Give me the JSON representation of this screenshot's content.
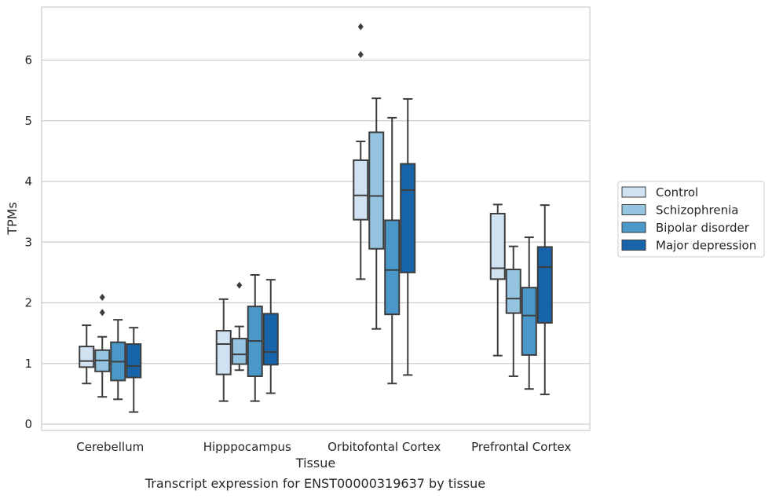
{
  "caption": "Transcript expression for ENST00000319637 by tissue",
  "chart_data": {
    "type": "box",
    "xlabel": "Tissue",
    "ylabel": "TPMs",
    "ylim": [
      -0.1,
      6.85
    ],
    "yticks": [
      0,
      1,
      2,
      3,
      4,
      5,
      6
    ],
    "grid": "horizontal",
    "legend_position": "right",
    "categories": [
      "Cerebellum",
      "Hipppocampus",
      "Orbitofontal Cortex",
      "Prefrontal Cortex"
    ],
    "series": [
      {
        "name": "Control",
        "color": "#d0e1f2",
        "boxes": [
          {
            "whisker_low": 0.67,
            "q1": 0.94,
            "median": 1.04,
            "q3": 1.28,
            "whisker_high": 1.63,
            "outliers": []
          },
          {
            "whisker_low": 0.38,
            "q1": 0.82,
            "median": 1.32,
            "q3": 1.54,
            "whisker_high": 2.06,
            "outliers": []
          },
          {
            "whisker_low": 2.39,
            "q1": 3.37,
            "median": 3.77,
            "q3": 4.35,
            "whisker_high": 4.66,
            "outliers": [
              6.09,
              6.55
            ]
          },
          {
            "whisker_low": 1.13,
            "q1": 2.39,
            "median": 2.57,
            "q3": 3.47,
            "whisker_high": 3.62,
            "outliers": []
          }
        ]
      },
      {
        "name": "Schizophrenia",
        "color": "#94c4df",
        "boxes": [
          {
            "whisker_low": 0.45,
            "q1": 0.87,
            "median": 1.05,
            "q3": 1.22,
            "whisker_high": 1.44,
            "outliers": [
              1.84,
              2.09
            ]
          },
          {
            "whisker_low": 0.89,
            "q1": 0.99,
            "median": 1.15,
            "q3": 1.41,
            "whisker_high": 1.61,
            "outliers": [
              2.29
            ]
          },
          {
            "whisker_low": 1.57,
            "q1": 2.89,
            "median": 3.76,
            "q3": 4.81,
            "whisker_high": 5.37,
            "outliers": []
          },
          {
            "whisker_low": 0.79,
            "q1": 1.83,
            "median": 2.07,
            "q3": 2.55,
            "whisker_high": 2.93,
            "outliers": []
          }
        ]
      },
      {
        "name": "Bipolar disorder",
        "color": "#4a98c9",
        "boxes": [
          {
            "whisker_low": 0.41,
            "q1": 0.72,
            "median": 1.03,
            "q3": 1.35,
            "whisker_high": 1.72,
            "outliers": []
          },
          {
            "whisker_low": 0.38,
            "q1": 0.79,
            "median": 1.37,
            "q3": 1.94,
            "whisker_high": 2.46,
            "outliers": []
          },
          {
            "whisker_low": 0.67,
            "q1": 1.81,
            "median": 2.54,
            "q3": 3.36,
            "whisker_high": 5.05,
            "outliers": []
          },
          {
            "whisker_low": 0.58,
            "q1": 1.14,
            "median": 1.79,
            "q3": 2.25,
            "whisker_high": 3.08,
            "outliers": []
          }
        ]
      },
      {
        "name": "Major depression",
        "color": "#1764ab",
        "boxes": [
          {
            "whisker_low": 0.2,
            "q1": 0.77,
            "median": 0.96,
            "q3": 1.32,
            "whisker_high": 1.59,
            "outliers": []
          },
          {
            "whisker_low": 0.51,
            "q1": 0.98,
            "median": 1.19,
            "q3": 1.82,
            "whisker_high": 2.38,
            "outliers": []
          },
          {
            "whisker_low": 0.81,
            "q1": 2.5,
            "median": 3.86,
            "q3": 4.29,
            "whisker_high": 5.36,
            "outliers": []
          },
          {
            "whisker_low": 0.49,
            "q1": 1.67,
            "median": 2.59,
            "q3": 2.92,
            "whisker_high": 3.61,
            "outliers": []
          }
        ]
      }
    ]
  }
}
